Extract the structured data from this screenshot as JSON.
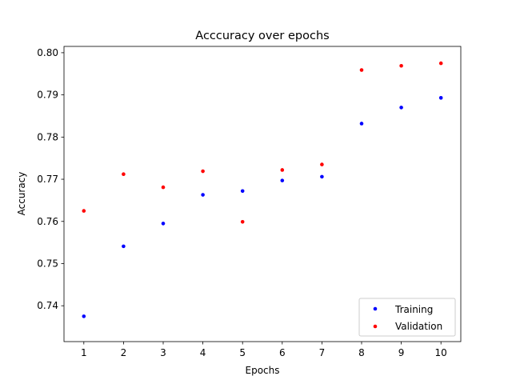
{
  "chart_data": {
    "type": "scatter",
    "title": "Acccuracy over epochs",
    "xlabel": "Epochs",
    "ylabel": "Accuracy",
    "x": [
      1,
      2,
      3,
      4,
      5,
      6,
      7,
      8,
      9,
      10
    ],
    "xlim": [
      0.5,
      10.5
    ],
    "ylim": [
      0.7315,
      0.8015
    ],
    "xticks": [
      1,
      2,
      3,
      4,
      5,
      6,
      7,
      8,
      9,
      10
    ],
    "yticks": [
      0.74,
      0.75,
      0.76,
      0.77,
      0.78,
      0.79,
      0.8
    ],
    "ytick_labels": [
      "0.74",
      "0.75",
      "0.76",
      "0.77",
      "0.78",
      "0.79",
      "0.80"
    ],
    "grid": false,
    "legend_position": "lower-right",
    "series": [
      {
        "name": "Training",
        "color": "#0000ff",
        "values": [
          0.7375,
          0.7541,
          0.7595,
          0.7663,
          0.7672,
          0.7697,
          0.7706,
          0.7832,
          0.787,
          0.7893
        ]
      },
      {
        "name": "Validation",
        "color": "#ff0000",
        "values": [
          0.7625,
          0.7712,
          0.7681,
          0.7719,
          0.7599,
          0.7722,
          0.7735,
          0.7959,
          0.7969,
          0.7975
        ]
      }
    ]
  }
}
